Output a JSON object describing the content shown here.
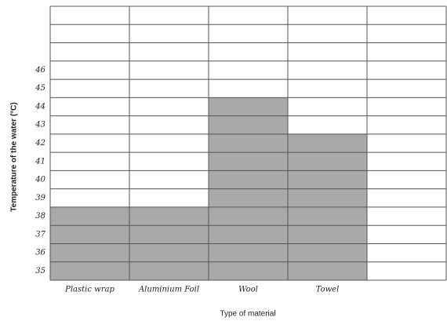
{
  "chart_data": {
    "type": "bar",
    "x_label": "Type of material",
    "y_label": "Temperature of the water (°C)",
    "categories": [
      "Plastic wrap",
      "Aluminium Foil",
      "Wool",
      "Towel",
      null
    ],
    "values": [
      38,
      38,
      44,
      42,
      null
    ],
    "color": "#9a9a9a",
    "ylim": [
      34,
      49
    ],
    "yticks": [
      35,
      36,
      37,
      38,
      39,
      40,
      41,
      42,
      43,
      44,
      45,
      46
    ],
    "grid": true
  }
}
